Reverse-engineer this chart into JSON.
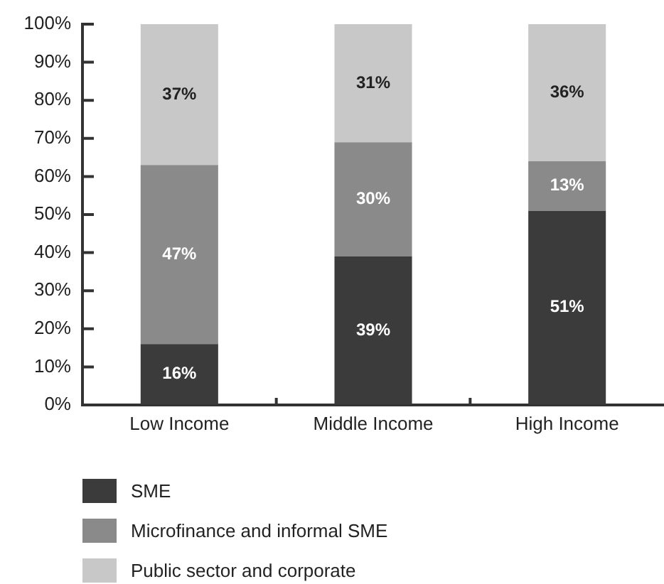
{
  "chart_data": {
    "type": "bar",
    "stacked": true,
    "categories": [
      "Low Income",
      "Middle Income",
      "High Income"
    ],
    "series": [
      {
        "name": "SME",
        "color": "#3b3b3b",
        "values": [
          16,
          39,
          51
        ],
        "value_labels": [
          "16%",
          "39%",
          "51%"
        ]
      },
      {
        "name": "Microfinance and informal SME",
        "color": "#8a8a8a",
        "values": [
          47,
          30,
          13
        ],
        "value_labels": [
          "47%",
          "30%",
          "13%"
        ]
      },
      {
        "name": "Public sector and corporate",
        "color": "#c8c8c8",
        "values": [
          37,
          31,
          36
        ],
        "value_labels": [
          "37%",
          "31%",
          "36%"
        ]
      }
    ],
    "ylim": [
      0,
      100
    ],
    "yticks": [
      {
        "value": 0,
        "label": "0%"
      },
      {
        "value": 10,
        "label": "10%"
      },
      {
        "value": 20,
        "label": "20%"
      },
      {
        "value": 30,
        "label": "30%"
      },
      {
        "value": 40,
        "label": "40%"
      },
      {
        "value": 50,
        "label": "50%"
      },
      {
        "value": 60,
        "label": "60%"
      },
      {
        "value": 70,
        "label": "70%"
      },
      {
        "value": 80,
        "label": "80%"
      },
      {
        "value": 90,
        "label": "90%"
      },
      {
        "value": 100,
        "label": "100%"
      }
    ],
    "grid": false,
    "legend": "bottom left"
  }
}
